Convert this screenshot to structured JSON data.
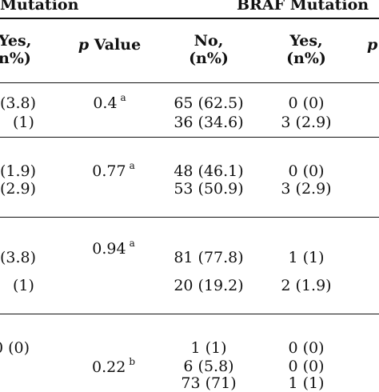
{
  "header": {
    "group_left": "Mutation",
    "group_right": "BRAF Mutation",
    "columns": [
      {
        "line1": "Yes,",
        "line2": "n%)"
      },
      {
        "p_italic": "p",
        "label": "Value"
      },
      {
        "line1": "No,",
        "line2": "(n%)"
      },
      {
        "line1": "Yes,",
        "line2": "(n%)"
      },
      {
        "p_italic": "p"
      }
    ]
  },
  "rows": {
    "g1": {
      "c1a": "(3.8)",
      "c1b": "(1)",
      "p": "0.4",
      "p_sup": "a",
      "c3a": "65 (62.5)",
      "c3b": "36 (34.6)",
      "c4a": "0 (0)",
      "c4b": "3 (2.9)"
    },
    "g2": {
      "c1a": "(1.9)",
      "c1b": "(2.9)",
      "p": "0.77",
      "p_sup": "a",
      "c3a": "48 (46.1)",
      "c3b": "53 (50.9)",
      "c4a": "0 (0)",
      "c4b": "3 (2.9)"
    },
    "g3": {
      "c1a": "(3.8)",
      "c1b": "(1)",
      "p": "0.94",
      "p_sup": "a",
      "c3a": "81 (77.8)",
      "c3b": "20 (19.2)",
      "c4a": "1 (1)",
      "c4b": "2 (1.9)"
    },
    "g4": {
      "c1a": "0 (0)",
      "p": "0.22",
      "p_sup": "b",
      "c3a": "1 (1)",
      "c3b": "6 (5.8)",
      "c3c": "73 (71)",
      "c4a": "0 (0)",
      "c4b": "0 (0)",
      "c4c": "1 (1)"
    }
  }
}
